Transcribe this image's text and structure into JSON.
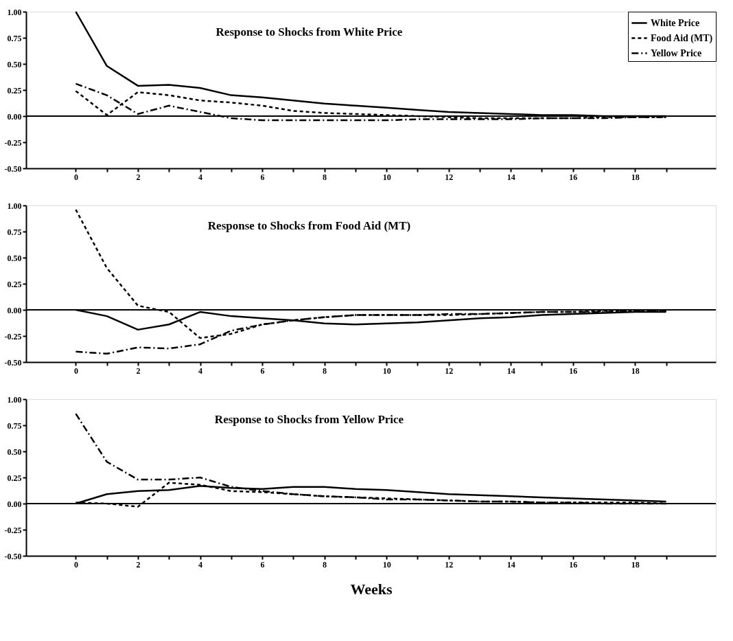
{
  "chart_data": [
    {
      "type": "line",
      "title": "Response to Shocks from White Price",
      "x": [
        0,
        1,
        2,
        3,
        4,
        5,
        6,
        7,
        8,
        9,
        10,
        11,
        12,
        13,
        14,
        15,
        16,
        17,
        18,
        19
      ],
      "series": [
        {
          "name": "White Price",
          "color": "#000000",
          "line_style": "solid",
          "values": [
            1.0,
            0.48,
            0.29,
            0.3,
            0.27,
            0.2,
            0.18,
            0.15,
            0.12,
            0.1,
            0.08,
            0.06,
            0.04,
            0.03,
            0.02,
            0.01,
            0.01,
            0.0,
            0.0,
            0.0
          ]
        },
        {
          "name": "Food Aid (MT)",
          "color": "#000000",
          "line_style": "dashed",
          "values": [
            0.24,
            0.01,
            0.23,
            0.2,
            0.15,
            0.13,
            0.1,
            0.05,
            0.03,
            0.02,
            0.01,
            0.0,
            -0.01,
            -0.02,
            -0.02,
            -0.02,
            -0.02,
            -0.01,
            -0.01,
            -0.01
          ]
        },
        {
          "name": "Yellow Price",
          "color": "#000000",
          "line_style": "dashdot",
          "values": [
            0.31,
            0.2,
            0.02,
            0.1,
            0.04,
            -0.02,
            -0.04,
            -0.04,
            -0.04,
            -0.04,
            -0.04,
            -0.03,
            -0.03,
            -0.03,
            -0.03,
            -0.02,
            -0.02,
            -0.02,
            -0.01,
            -0.01
          ]
        }
      ],
      "xlim": [
        -1.6,
        20.6
      ],
      "xticks": [
        0,
        {
          "value": 1,
          "label": null
        },
        2,
        {
          "value": 3,
          "label": null
        },
        4,
        {
          "value": 5,
          "label": null
        },
        6,
        {
          "value": 7,
          "label": null
        },
        8,
        {
          "value": 9,
          "label": null
        },
        10,
        {
          "value": 11,
          "label": null
        },
        12,
        {
          "value": 13,
          "label": null
        },
        14,
        {
          "value": 15,
          "label": null
        },
        16,
        {
          "value": 17,
          "label": null
        },
        18,
        {
          "value": 19,
          "label": null
        }
      ],
      "ylim": [
        -0.5,
        1.0
      ],
      "yticks": [
        {
          "value": -0.5,
          "label": "-0.50"
        },
        {
          "value": -0.25,
          "label": "-0.25"
        },
        {
          "value": 0,
          "label": "0.00"
        },
        {
          "value": 0.25,
          "label": "0.25"
        },
        {
          "value": 0.5,
          "label": "0.50"
        },
        {
          "value": 0.75,
          "label": "0.75"
        },
        {
          "value": 1.0,
          "label": "1.00"
        }
      ],
      "ref_lines": [
        {
          "axis": "y",
          "value": 0
        }
      ],
      "grid": false,
      "legend": "top right",
      "marker": "none"
    },
    {
      "type": "line",
      "title": "Response to Shocks from Food Aid (MT)",
      "x": [
        0,
        1,
        2,
        3,
        4,
        5,
        6,
        7,
        8,
        9,
        10,
        11,
        12,
        13,
        14,
        15,
        16,
        17,
        18,
        19
      ],
      "series": [
        {
          "name": "White Price",
          "color": "#000000",
          "line_style": "solid",
          "values": [
            0.0,
            -0.06,
            -0.19,
            -0.14,
            -0.02,
            -0.06,
            -0.08,
            -0.1,
            -0.13,
            -0.14,
            -0.13,
            -0.12,
            -0.1,
            -0.08,
            -0.07,
            -0.05,
            -0.04,
            -0.03,
            -0.02,
            -0.02
          ]
        },
        {
          "name": "Food Aid (MT)",
          "color": "#000000",
          "line_style": "dashed",
          "values": [
            0.96,
            0.4,
            0.04,
            -0.02,
            -0.27,
            -0.23,
            -0.14,
            -0.1,
            -0.07,
            -0.05,
            -0.05,
            -0.05,
            -0.05,
            -0.04,
            -0.03,
            -0.02,
            -0.02,
            -0.01,
            -0.01,
            -0.01
          ]
        },
        {
          "name": "Yellow Price",
          "color": "#000000",
          "line_style": "dashdot",
          "values": [
            -0.4,
            -0.42,
            -0.36,
            -0.37,
            -0.33,
            -0.2,
            -0.14,
            -0.1,
            -0.07,
            -0.05,
            -0.05,
            -0.05,
            -0.04,
            -0.04,
            -0.03,
            -0.02,
            -0.02,
            -0.02,
            -0.01,
            -0.01
          ]
        }
      ],
      "xlim": [
        -1.6,
        20.6
      ],
      "xticks": [
        0,
        {
          "value": 1,
          "label": null
        },
        2,
        {
          "value": 3,
          "label": null
        },
        4,
        {
          "value": 5,
          "label": null
        },
        6,
        {
          "value": 7,
          "label": null
        },
        8,
        {
          "value": 9,
          "label": null
        },
        10,
        {
          "value": 11,
          "label": null
        },
        12,
        {
          "value": 13,
          "label": null
        },
        14,
        {
          "value": 15,
          "label": null
        },
        16,
        {
          "value": 17,
          "label": null
        },
        18,
        {
          "value": 19,
          "label": null
        }
      ],
      "ylim": [
        -0.5,
        1.0
      ],
      "yticks": [
        {
          "value": -0.5,
          "label": "-0.50"
        },
        {
          "value": -0.25,
          "label": "-0.25"
        },
        {
          "value": 0,
          "label": "0.00"
        },
        {
          "value": 0.25,
          "label": "0.25"
        },
        {
          "value": 0.5,
          "label": "0.50"
        },
        {
          "value": 0.75,
          "label": "0.75"
        },
        {
          "value": 1.0,
          "label": "1.00"
        }
      ],
      "ref_lines": [
        {
          "axis": "y",
          "value": 0
        }
      ],
      "grid": false,
      "legend": "top right",
      "marker": "none"
    },
    {
      "type": "line",
      "title": "Response to Shocks from Yellow Price",
      "xlabel": "Weeks",
      "x": [
        0,
        1,
        2,
        3,
        4,
        5,
        6,
        7,
        8,
        9,
        10,
        11,
        12,
        13,
        14,
        15,
        16,
        17,
        18,
        19
      ],
      "series": [
        {
          "name": "White Price",
          "color": "#000000",
          "line_style": "solid",
          "values": [
            0.0,
            0.09,
            0.12,
            0.13,
            0.17,
            0.15,
            0.14,
            0.16,
            0.16,
            0.14,
            0.13,
            0.11,
            0.09,
            0.08,
            0.07,
            0.06,
            0.05,
            0.04,
            0.03,
            0.02
          ]
        },
        {
          "name": "Food Aid (MT)",
          "color": "#000000",
          "line_style": "dashed",
          "values": [
            0.01,
            0.0,
            -0.03,
            0.2,
            0.18,
            0.12,
            0.11,
            0.09,
            0.07,
            0.06,
            0.05,
            0.04,
            0.03,
            0.02,
            0.02,
            0.01,
            0.01,
            0.01,
            0.01,
            0.0
          ]
        },
        {
          "name": "Yellow Price",
          "color": "#000000",
          "line_style": "dashdot",
          "values": [
            0.86,
            0.4,
            0.23,
            0.23,
            0.25,
            0.16,
            0.12,
            0.09,
            0.07,
            0.06,
            0.04,
            0.04,
            0.03,
            0.02,
            0.02,
            0.01,
            0.01,
            0.0,
            0.0,
            0.0
          ]
        }
      ],
      "xlim": [
        -1.6,
        20.6
      ],
      "xticks": [
        0,
        {
          "value": 1,
          "label": null
        },
        2,
        {
          "value": 3,
          "label": null
        },
        4,
        {
          "value": 5,
          "label": null
        },
        6,
        {
          "value": 7,
          "label": null
        },
        8,
        {
          "value": 9,
          "label": null
        },
        10,
        {
          "value": 11,
          "label": null
        },
        12,
        {
          "value": 13,
          "label": null
        },
        14,
        {
          "value": 15,
          "label": null
        },
        16,
        {
          "value": 17,
          "label": null
        },
        18,
        {
          "value": 19,
          "label": null
        }
      ],
      "ylim": [
        -0.5,
        1.0
      ],
      "yticks": [
        {
          "value": -0.5,
          "label": "-0.50"
        },
        {
          "value": -0.25,
          "label": "-0.25"
        },
        {
          "value": 0,
          "label": "0.00"
        },
        {
          "value": 0.25,
          "label": "0.25"
        },
        {
          "value": 0.5,
          "label": "0.50"
        },
        {
          "value": 0.75,
          "label": "0.75"
        },
        {
          "value": 1.0,
          "label": "1.00"
        }
      ],
      "ref_lines": [
        {
          "axis": "y",
          "value": 0
        }
      ],
      "grid": false,
      "legend": "top right",
      "marker": "none"
    }
  ]
}
